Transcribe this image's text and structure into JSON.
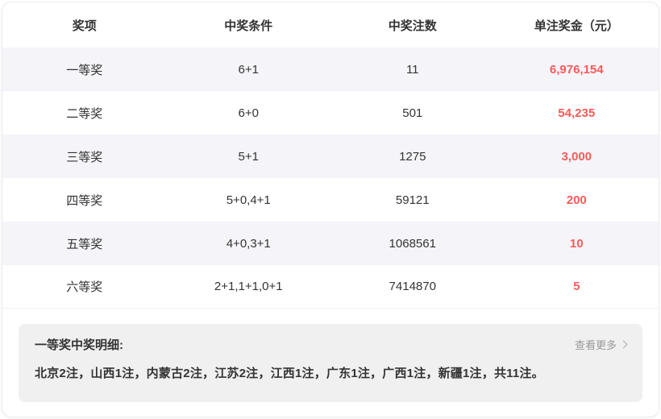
{
  "table": {
    "headers": [
      "奖项",
      "中奖条件",
      "中奖注数",
      "单注奖金（元）"
    ],
    "rows": [
      {
        "tier": "一等奖",
        "condition": "6+1",
        "count": "11",
        "prize": "6,976,154"
      },
      {
        "tier": "二等奖",
        "condition": "6+0",
        "count": "501",
        "prize": "54,235"
      },
      {
        "tier": "三等奖",
        "condition": "5+1",
        "count": "1275",
        "prize": "3,000"
      },
      {
        "tier": "四等奖",
        "condition": "5+0,4+1",
        "count": "59121",
        "prize": "200"
      },
      {
        "tier": "五等奖",
        "condition": "4+0,3+1",
        "count": "1068561",
        "prize": "10"
      },
      {
        "tier": "六等奖",
        "condition": "2+1,1+1,0+1",
        "count": "7414870",
        "prize": "5"
      }
    ]
  },
  "detail": {
    "title": "一等奖中奖明细:",
    "more_label": "查看更多",
    "text": "北京2注，山西1注，内蒙古2注，江苏2注，江西1注，广东1注，广西1注，新疆1注，共11注。"
  },
  "colors": {
    "prize_red": "#fa5a5a",
    "row_stripe": "#f4f4f9",
    "detail_bg": "#f0f0f0"
  }
}
